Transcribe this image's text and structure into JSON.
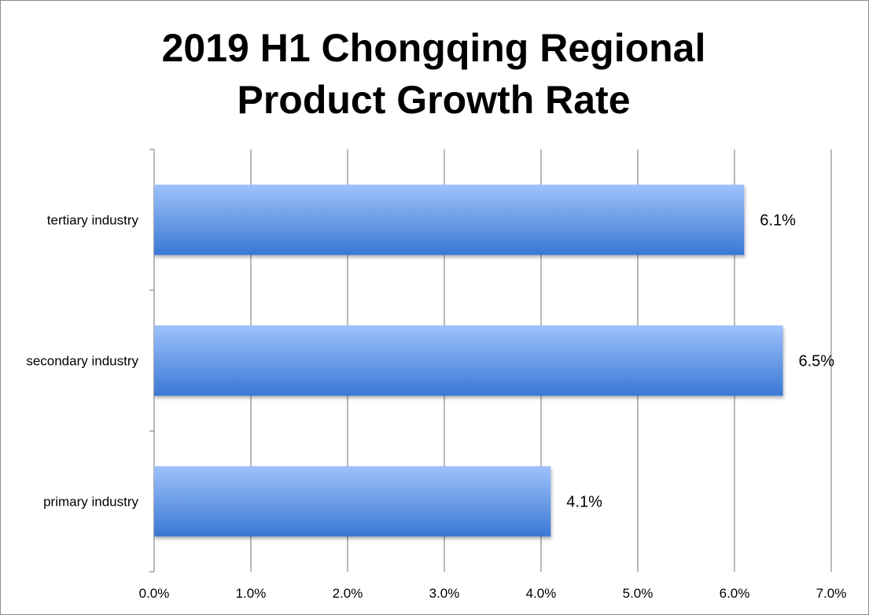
{
  "chart_data": {
    "type": "bar",
    "orientation": "horizontal",
    "title_lines": [
      "2019 H1 Chongqing Regional",
      "Product Growth Rate"
    ],
    "categories": [
      "primary industry",
      "secondary industry",
      "tertiary industry"
    ],
    "values": [
      4.1,
      6.5,
      6.1
    ],
    "data_labels": [
      "4.1%",
      "6.5%",
      "6.1%"
    ],
    "xlim": [
      0,
      7
    ],
    "x_ticks": [
      0,
      1,
      2,
      3,
      4,
      5,
      6,
      7
    ],
    "x_tick_labels": [
      "0.0%",
      "1.0%",
      "2.0%",
      "3.0%",
      "4.0%",
      "5.0%",
      "6.0%",
      "7.0%"
    ],
    "grid": "vertical",
    "legend": "none",
    "bar_color_top": "#9ec2fb",
    "bar_color_bottom": "#3a78d4"
  }
}
